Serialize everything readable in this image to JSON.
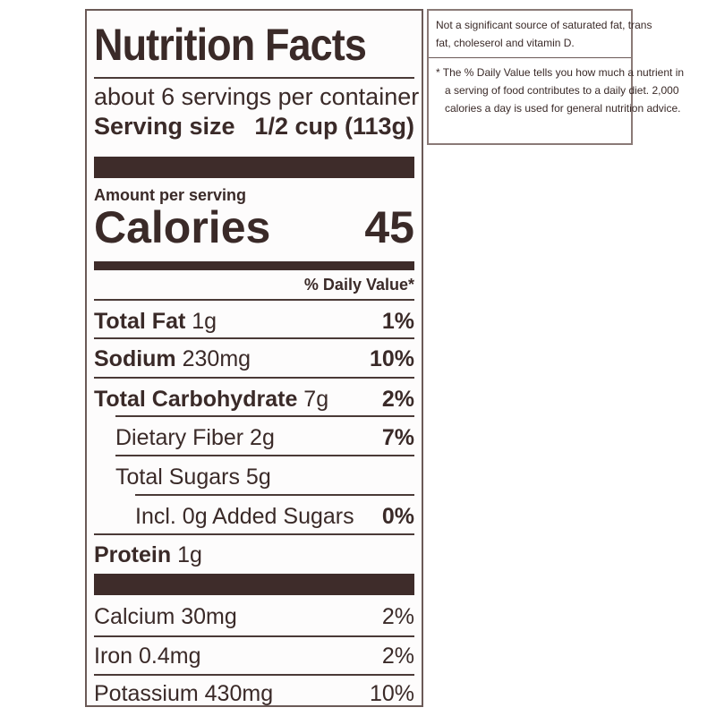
{
  "label": {
    "title": "Nutrition Facts",
    "servings_per_container": "about 6 servings per container",
    "serving_size_label": "Serving size",
    "serving_size_value": "1/2 cup (113g)",
    "amount_per_serving": "Amount per serving",
    "calories_label": "Calories",
    "calories_value": "45",
    "daily_value_header": "% Daily Value*",
    "nutrients": [
      {
        "name": "Total Fat",
        "amount": "1g",
        "dv": "1%"
      },
      {
        "name": "Sodium",
        "amount": "230mg",
        "dv": "10%"
      },
      {
        "name": "Total Carbohydrate",
        "amount": "7g",
        "dv": "2%"
      },
      {
        "name": "Dietary Fiber 2g",
        "amount": "",
        "dv": "7%"
      },
      {
        "name": "Total Sugars 5g",
        "amount": "",
        "dv": ""
      },
      {
        "name": "Incl. 0g Added Sugars",
        "amount": "",
        "dv": "0%"
      },
      {
        "name": "Protein",
        "amount": "1g",
        "dv": ""
      }
    ],
    "minerals": [
      {
        "name": "Calcium 30mg",
        "dv": "2%"
      },
      {
        "name": "Iron 0.4mg",
        "dv": "2%"
      },
      {
        "name": "Potassium 430mg",
        "dv": "10%"
      }
    ]
  },
  "side_note": {
    "line1": "Not a significant source of saturated fat, trans",
    "line2": "fat, choleserol and vitamin D.",
    "line3": "* The % Daily Value tells you how much a nutrient in",
    "line4": "a serving of food contributes to a daily diet. 2,000",
    "line5": "calories a day is used for general nutrition advice."
  }
}
